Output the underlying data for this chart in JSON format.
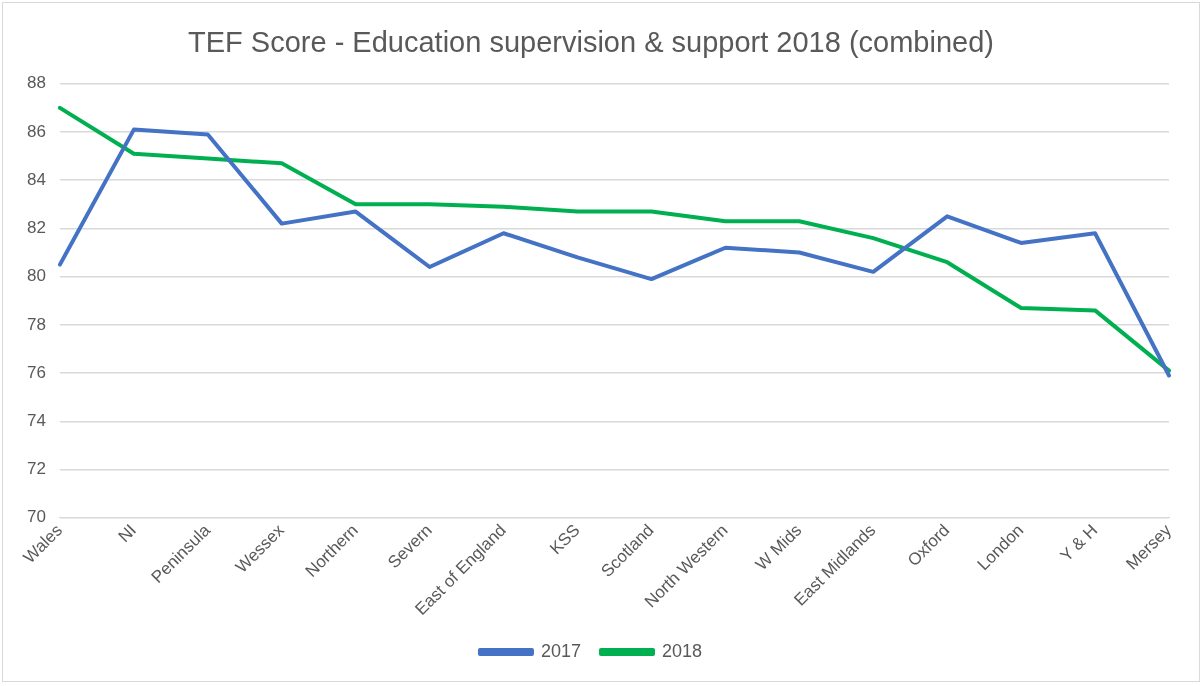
{
  "chart_data": {
    "type": "line",
    "title": "TEF Score - Education supervision & support 2018 (combined)",
    "categories": [
      "Wales",
      "NI",
      "Peninsula",
      "Wessex",
      "Northern",
      "Severn",
      "East of England",
      "KSS",
      "Scotland",
      "North Western",
      "W Mids",
      "East Midlands",
      "Oxford",
      "London",
      "Y & H",
      "Mersey"
    ],
    "series": [
      {
        "name": "2017",
        "color": "#4472c4",
        "values": [
          80.5,
          86.1,
          85.9,
          82.2,
          82.7,
          80.4,
          81.8,
          80.8,
          79.9,
          81.2,
          81.0,
          80.2,
          82.5,
          81.4,
          81.8,
          75.9
        ]
      },
      {
        "name": "2018",
        "color": "#00b050",
        "values": [
          87.0,
          85.1,
          84.9,
          84.7,
          83.0,
          83.0,
          82.9,
          82.7,
          82.7,
          82.3,
          82.3,
          81.6,
          80.6,
          78.7,
          78.6,
          76.1
        ]
      }
    ],
    "ylim": [
      70,
      88
    ],
    "yticks": [
      70,
      72,
      74,
      76,
      78,
      80,
      82,
      84,
      86,
      88
    ],
    "grid": "y",
    "legend": "bottom",
    "marker": "none",
    "line_style": "solid"
  }
}
